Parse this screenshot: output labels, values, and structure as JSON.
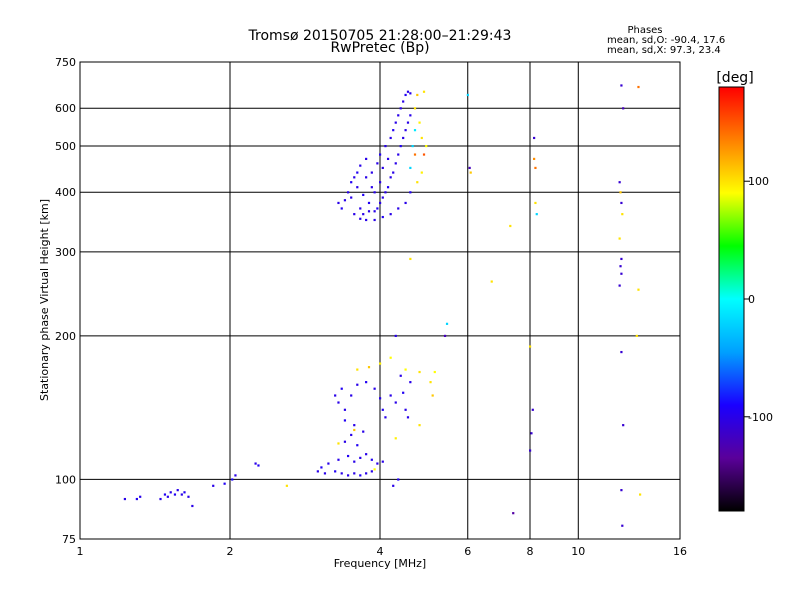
{
  "chart_data": {
    "type": "scatter",
    "title": "Tromsø 20150705 21:28:00–21:29:43",
    "subtitle": "RwPretec (Bp)",
    "xlabel": "Frequency [MHz]",
    "ylabel": "Stationary phase Virtual Height [km]",
    "x_scale": "log",
    "y_scale": "log",
    "xlim": [
      1,
      16
    ],
    "ylim": [
      75,
      750
    ],
    "x_ticks": [
      1,
      2,
      4,
      6,
      8,
      10,
      16
    ],
    "x_tick_labels": [
      "1",
      "2",
      "4",
      "6",
      "8",
      "10",
      "16"
    ],
    "y_ticks": [
      75,
      100,
      200,
      300,
      400,
      500,
      600,
      750
    ],
    "y_tick_labels": [
      "75",
      "100",
      "200",
      "300",
      "400",
      "500",
      "600",
      "750"
    ],
    "grid": true,
    "phases": {
      "title": "Phases",
      "line_o": "mean, sd,O: -90.4, 17.6",
      "line_x": "mean, sd,X:  97.3, 23.4"
    },
    "colorbar": {
      "label": "[deg]",
      "range": [
        -180,
        180
      ],
      "ticks": [
        -100,
        0,
        100
      ],
      "tick_labels": [
        "-100",
        "0",
        "100"
      ],
      "colors": [
        "#000000",
        "#5a009a",
        "#1a00ff",
        "#00a0ff",
        "#00ffff",
        "#00ff00",
        "#ffff00",
        "#ff8000",
        "#ff0000"
      ]
    },
    "points": [
      [
        1.23,
        91,
        -100
      ],
      [
        1.3,
        91,
        -95
      ],
      [
        1.32,
        92,
        -100
      ],
      [
        1.45,
        91,
        -100
      ],
      [
        1.48,
        93,
        -95
      ],
      [
        1.5,
        92,
        -100
      ],
      [
        1.52,
        94,
        -100
      ],
      [
        1.55,
        93,
        -95
      ],
      [
        1.57,
        95,
        -100
      ],
      [
        1.6,
        93,
        -100
      ],
      [
        1.62,
        94,
        -95
      ],
      [
        1.65,
        92,
        -100
      ],
      [
        1.68,
        88,
        -100
      ],
      [
        1.85,
        97,
        -100
      ],
      [
        1.95,
        98,
        -95
      ],
      [
        2.02,
        100,
        -90
      ],
      [
        2.05,
        102,
        -100
      ],
      [
        2.25,
        108,
        -100
      ],
      [
        2.28,
        107,
        -95
      ],
      [
        2.6,
        97,
        100
      ],
      [
        3.0,
        104,
        -100
      ],
      [
        3.05,
        106,
        -95
      ],
      [
        3.1,
        103,
        -100
      ],
      [
        3.15,
        108,
        -100
      ],
      [
        3.25,
        104,
        -95
      ],
      [
        3.35,
        103,
        -100
      ],
      [
        3.45,
        102,
        -100
      ],
      [
        3.55,
        103,
        -100
      ],
      [
        3.65,
        102,
        -95
      ],
      [
        3.75,
        103,
        -100
      ],
      [
        3.85,
        104,
        -100
      ],
      [
        3.3,
        110,
        -100
      ],
      [
        3.45,
        112,
        -95
      ],
      [
        3.55,
        109,
        -100
      ],
      [
        3.65,
        111,
        -100
      ],
      [
        3.75,
        113,
        -100
      ],
      [
        3.85,
        110,
        -95
      ],
      [
        3.95,
        108,
        -100
      ],
      [
        4.05,
        109,
        -100
      ],
      [
        3.4,
        120,
        -100
      ],
      [
        3.5,
        124,
        -100
      ],
      [
        3.6,
        118,
        -95
      ],
      [
        3.7,
        126,
        -100
      ],
      [
        3.55,
        130,
        -100
      ],
      [
        3.4,
        133,
        -95
      ],
      [
        3.25,
        150,
        -100
      ],
      [
        3.3,
        145,
        -100
      ],
      [
        3.35,
        155,
        -95
      ],
      [
        3.4,
        140,
        -100
      ],
      [
        3.5,
        150,
        -100
      ],
      [
        3.6,
        158,
        -100
      ],
      [
        3.75,
        160,
        -95
      ],
      [
        3.9,
        155,
        -100
      ],
      [
        4.0,
        148,
        -100
      ],
      [
        4.05,
        140,
        -95
      ],
      [
        4.1,
        135,
        -100
      ],
      [
        4.2,
        150,
        -100
      ],
      [
        4.3,
        145,
        -100
      ],
      [
        4.45,
        152,
        -95
      ],
      [
        4.5,
        140,
        -100
      ],
      [
        4.55,
        135,
        -100
      ],
      [
        4.6,
        160,
        -100
      ],
      [
        4.4,
        165,
        -100
      ],
      [
        3.6,
        170,
        100
      ],
      [
        3.8,
        172,
        110
      ],
      [
        4.5,
        170,
        90
      ],
      [
        4.8,
        168,
        100
      ],
      [
        4.8,
        130,
        100
      ],
      [
        4.3,
        122,
        95
      ],
      [
        3.55,
        127,
        110
      ],
      [
        3.3,
        119,
        100
      ],
      [
        3.9,
        105,
        90
      ],
      [
        4.0,
        175,
        95
      ],
      [
        4.2,
        180,
        90
      ],
      [
        4.3,
        200,
        -100
      ],
      [
        4.25,
        97,
        -100
      ],
      [
        4.35,
        100,
        -95
      ],
      [
        5.05,
        160,
        100
      ],
      [
        5.1,
        150,
        110
      ],
      [
        5.15,
        168,
        90
      ],
      [
        5.4,
        200,
        -120
      ],
      [
        5.45,
        212,
        -20
      ],
      [
        3.3,
        380,
        -100
      ],
      [
        3.35,
        370,
        -95
      ],
      [
        3.4,
        385,
        -100
      ],
      [
        3.45,
        400,
        -100
      ],
      [
        3.5,
        390,
        -100
      ],
      [
        3.5,
        420,
        -95
      ],
      [
        3.55,
        430,
        -100
      ],
      [
        3.55,
        360,
        -100
      ],
      [
        3.6,
        410,
        -100
      ],
      [
        3.6,
        440,
        -95
      ],
      [
        3.65,
        370,
        -100
      ],
      [
        3.65,
        455,
        -100
      ],
      [
        3.7,
        360,
        -100
      ],
      [
        3.7,
        395,
        -95
      ],
      [
        3.75,
        430,
        -100
      ],
      [
        3.75,
        470,
        -100
      ],
      [
        3.8,
        365,
        -100
      ],
      [
        3.8,
        380,
        -95
      ],
      [
        3.85,
        410,
        -100
      ],
      [
        3.85,
        440,
        -100
      ],
      [
        3.9,
        365,
        -100
      ],
      [
        3.9,
        400,
        -100
      ],
      [
        3.95,
        370,
        -95
      ],
      [
        3.95,
        460,
        -100
      ],
      [
        4.0,
        380,
        -100
      ],
      [
        4.0,
        420,
        -100
      ],
      [
        4.0,
        480,
        -95
      ],
      [
        4.05,
        390,
        -100
      ],
      [
        4.05,
        450,
        -100
      ],
      [
        4.1,
        400,
        -100
      ],
      [
        4.1,
        500,
        -100
      ],
      [
        4.15,
        410,
        -95
      ],
      [
        4.15,
        470,
        -100
      ],
      [
        4.2,
        430,
        -100
      ],
      [
        4.2,
        520,
        -100
      ],
      [
        4.25,
        440,
        -100
      ],
      [
        4.25,
        540,
        -95
      ],
      [
        4.3,
        460,
        -100
      ],
      [
        4.3,
        560,
        -100
      ],
      [
        4.35,
        480,
        -100
      ],
      [
        4.35,
        580,
        -100
      ],
      [
        4.4,
        500,
        -95
      ],
      [
        4.4,
        600,
        -100
      ],
      [
        4.45,
        520,
        -100
      ],
      [
        4.45,
        620,
        -100
      ],
      [
        4.5,
        540,
        -100
      ],
      [
        4.5,
        640,
        -95
      ],
      [
        4.55,
        560,
        -100
      ],
      [
        4.55,
        650,
        -100
      ],
      [
        4.6,
        580,
        -100
      ],
      [
        4.6,
        645,
        -100
      ],
      [
        4.6,
        400,
        -95
      ],
      [
        4.5,
        380,
        -100
      ],
      [
        4.35,
        370,
        -100
      ],
      [
        4.2,
        360,
        -100
      ],
      [
        4.05,
        355,
        -95
      ],
      [
        3.9,
        350,
        -100
      ],
      [
        3.75,
        350,
        -100
      ],
      [
        3.65,
        352,
        -100
      ],
      [
        4.7,
        600,
        100
      ],
      [
        4.75,
        640,
        110
      ],
      [
        4.8,
        560,
        95
      ],
      [
        4.85,
        520,
        100
      ],
      [
        4.9,
        480,
        150
      ],
      [
        4.95,
        500,
        90
      ],
      [
        4.9,
        650,
        100
      ],
      [
        4.7,
        480,
        140
      ],
      [
        4.75,
        420,
        100
      ],
      [
        4.85,
        440,
        95
      ],
      [
        4.6,
        450,
        -20
      ],
      [
        4.65,
        500,
        -20
      ],
      [
        4.7,
        540,
        -10
      ],
      [
        4.6,
        290,
        100
      ],
      [
        6.0,
        640,
        -20
      ],
      [
        6.05,
        450,
        -120
      ],
      [
        6.08,
        440,
        110
      ],
      [
        6.7,
        260,
        100
      ],
      [
        7.3,
        340,
        100
      ],
      [
        7.4,
        85,
        -130
      ],
      [
        8.15,
        520,
        -110
      ],
      [
        8.15,
        470,
        130
      ],
      [
        8.2,
        450,
        140
      ],
      [
        8.2,
        380,
        100
      ],
      [
        8.25,
        360,
        -20
      ],
      [
        8.0,
        190,
        100
      ],
      [
        8.1,
        140,
        -110
      ],
      [
        8.05,
        125,
        -110
      ],
      [
        8.0,
        115,
        -110
      ],
      [
        12.2,
        670,
        -110
      ],
      [
        12.3,
        600,
        -120
      ],
      [
        12.1,
        420,
        -110
      ],
      [
        12.15,
        400,
        110
      ],
      [
        12.2,
        380,
        -110
      ],
      [
        12.25,
        360,
        100
      ],
      [
        12.1,
        320,
        100
      ],
      [
        12.2,
        290,
        -110
      ],
      [
        12.15,
        280,
        -110
      ],
      [
        12.2,
        270,
        -110
      ],
      [
        12.1,
        255,
        -110
      ],
      [
        12.2,
        185,
        -110
      ],
      [
        12.3,
        130,
        -110
      ],
      [
        12.2,
        95,
        -110
      ],
      [
        12.25,
        80,
        -110
      ],
      [
        13.2,
        665,
        140
      ],
      [
        13.2,
        250,
        100
      ],
      [
        13.1,
        200,
        100
      ],
      [
        13.3,
        93,
        100
      ]
    ]
  }
}
